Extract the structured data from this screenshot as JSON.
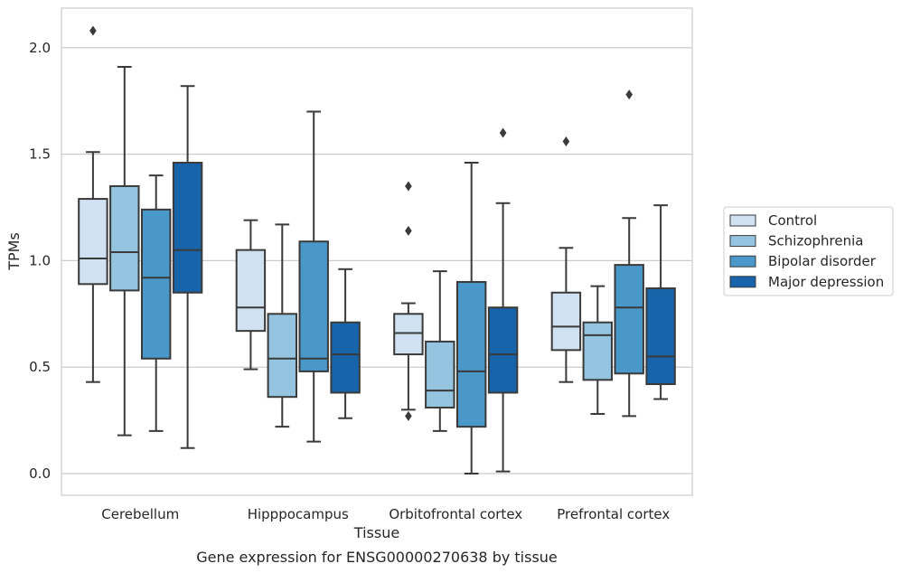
{
  "chart_data": {
    "type": "boxplot",
    "title": "",
    "caption": "Gene expression for ENSG00000270638 by tissue",
    "xlabel": "Tissue",
    "ylabel": "TPMs",
    "ylim": [
      -0.1,
      2.19
    ],
    "yticks": [
      "0.0",
      "0.5",
      "1.0",
      "1.5",
      "2.0"
    ],
    "ytick_values": [
      0.0,
      0.5,
      1.0,
      1.5,
      2.0
    ],
    "grid": "horizontal",
    "legend_position": "right",
    "categories": [
      "Cerebellum",
      "Hipppocampus",
      "Orbitofrontal cortex",
      "Prefrontal cortex"
    ],
    "series": [
      {
        "name": "Control",
        "color": "#d0e1f2",
        "boxes": [
          {
            "whisker_low": 0.43,
            "q1": 0.89,
            "median": 1.01,
            "q3": 1.29,
            "whisker_high": 1.51,
            "outliers": [
              2.08
            ]
          },
          {
            "whisker_low": 0.49,
            "q1": 0.67,
            "median": 0.78,
            "q3": 1.05,
            "whisker_high": 1.19,
            "outliers": []
          },
          {
            "whisker_low": 0.3,
            "q1": 0.56,
            "median": 0.66,
            "q3": 0.75,
            "whisker_high": 0.8,
            "outliers": [
              1.35,
              1.14,
              0.27
            ]
          },
          {
            "whisker_low": 0.43,
            "q1": 0.58,
            "median": 0.69,
            "q3": 0.85,
            "whisker_high": 1.06,
            "outliers": [
              1.56
            ]
          }
        ]
      },
      {
        "name": "Schizophrenia",
        "color": "#94c4df",
        "boxes": [
          {
            "whisker_low": 0.18,
            "q1": 0.86,
            "median": 1.04,
            "q3": 1.35,
            "whisker_high": 1.91,
            "outliers": []
          },
          {
            "whisker_low": 0.22,
            "q1": 0.36,
            "median": 0.54,
            "q3": 0.75,
            "whisker_high": 1.17,
            "outliers": []
          },
          {
            "whisker_low": 0.2,
            "q1": 0.31,
            "median": 0.39,
            "q3": 0.62,
            "whisker_high": 0.95,
            "outliers": []
          },
          {
            "whisker_low": 0.28,
            "q1": 0.44,
            "median": 0.65,
            "q3": 0.71,
            "whisker_high": 0.88,
            "outliers": []
          }
        ]
      },
      {
        "name": "Bipolar disorder",
        "color": "#4a98c9",
        "boxes": [
          {
            "whisker_low": 0.2,
            "q1": 0.54,
            "median": 0.92,
            "q3": 1.24,
            "whisker_high": 1.4,
            "outliers": []
          },
          {
            "whisker_low": 0.15,
            "q1": 0.48,
            "median": 0.54,
            "q3": 1.09,
            "whisker_high": 1.7,
            "outliers": []
          },
          {
            "whisker_low": 0.0,
            "q1": 0.22,
            "median": 0.48,
            "q3": 0.9,
            "whisker_high": 1.46,
            "outliers": []
          },
          {
            "whisker_low": 0.27,
            "q1": 0.47,
            "median": 0.78,
            "q3": 0.98,
            "whisker_high": 1.2,
            "outliers": [
              1.78
            ]
          }
        ]
      },
      {
        "name": "Major depression",
        "color": "#1764ab",
        "boxes": [
          {
            "whisker_low": 0.12,
            "q1": 0.85,
            "median": 1.05,
            "q3": 1.46,
            "whisker_high": 1.82,
            "outliers": []
          },
          {
            "whisker_low": 0.26,
            "q1": 0.38,
            "median": 0.56,
            "q3": 0.71,
            "whisker_high": 0.96,
            "outliers": []
          },
          {
            "whisker_low": 0.01,
            "q1": 0.38,
            "median": 0.56,
            "q3": 0.78,
            "whisker_high": 1.27,
            "outliers": [
              1.6
            ]
          },
          {
            "whisker_low": 0.35,
            "q1": 0.42,
            "median": 0.55,
            "q3": 0.87,
            "whisker_high": 1.26,
            "outliers": []
          }
        ]
      }
    ]
  }
}
